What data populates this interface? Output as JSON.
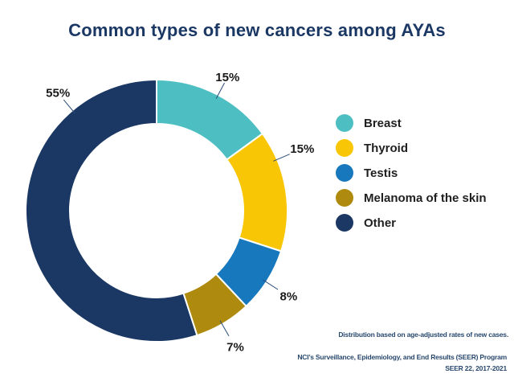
{
  "title": "Common types of new cancers among AYAs",
  "chart_data": {
    "type": "pie",
    "subtype": "donut",
    "title": "Common types of new cancers among AYAs",
    "start_angle_deg": 0,
    "direction": "clockwise",
    "hole_ratio": 0.66,
    "legend_position": "right",
    "slices": [
      {
        "label": "Breast",
        "value": 15,
        "pct": "15%",
        "color": "#4DBEC1"
      },
      {
        "label": "Thyroid",
        "value": 15,
        "pct": "15%",
        "color": "#F9C606"
      },
      {
        "label": "Testis",
        "value": 8,
        "pct": "8%",
        "color": "#1878BD"
      },
      {
        "label": "Melanoma of the skin",
        "value": 7,
        "pct": "7%",
        "color": "#AE8B0E"
      },
      {
        "label": "Other",
        "value": 55,
        "pct": "55%",
        "color": "#1B3864"
      }
    ]
  },
  "footnotes": {
    "distribution": "Distribution based on age-adjusted rates of new cases.",
    "source_line1": "NCI’s Surveillance, Epidemiology, and End Results (SEER) Program",
    "source_line2": "SEER 22, 2017-2021"
  },
  "colors": {
    "title": "#1B3864",
    "value_label_text": "#1A1A1A",
    "leader_line": "#2A4B77",
    "footnote_text": "#28486D",
    "background": "#FFFFFF"
  }
}
